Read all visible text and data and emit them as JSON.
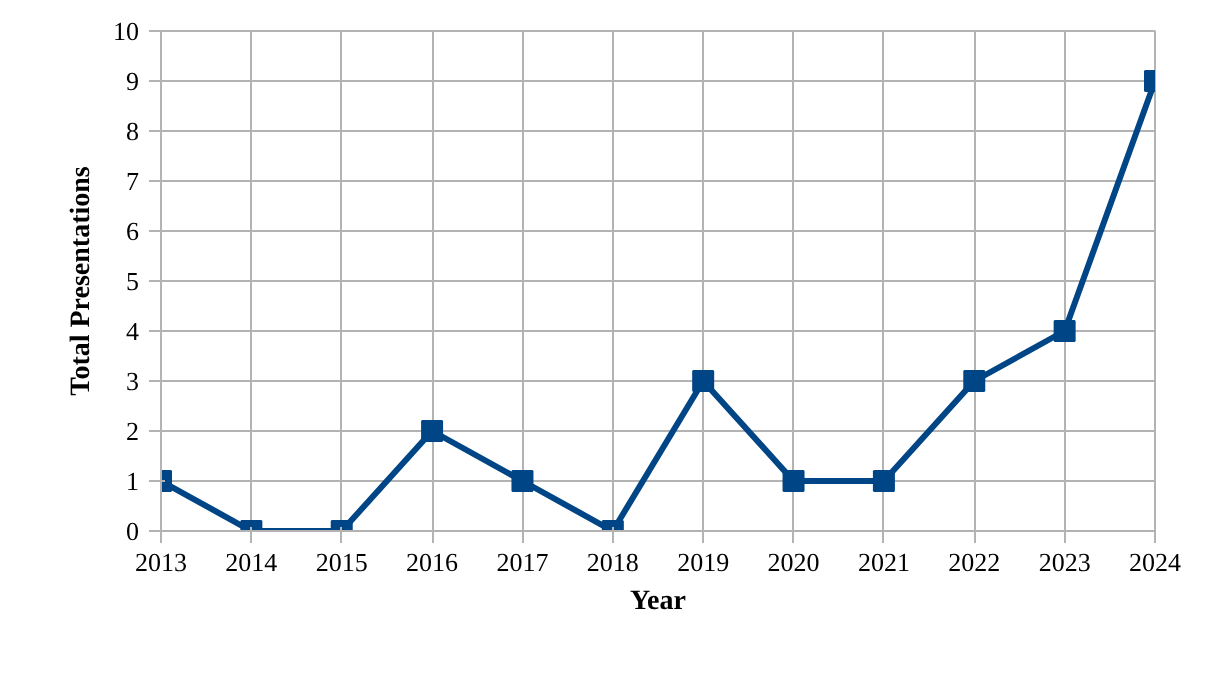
{
  "chart_data": {
    "type": "line",
    "xlabel": "Year",
    "ylabel": "Total Presentations",
    "x": [
      2013,
      2014,
      2015,
      2016,
      2017,
      2018,
      2019,
      2020,
      2021,
      2022,
      2023,
      2024
    ],
    "series": [
      {
        "color": "#004586",
        "values": [
          1,
          0,
          0,
          2,
          1,
          0,
          3,
          1,
          1,
          3,
          4,
          9
        ]
      }
    ],
    "xlim": [
      2013,
      2024
    ],
    "xticks": [
      2013,
      2014,
      2015,
      2016,
      2017,
      2018,
      2019,
      2020,
      2021,
      2022,
      2023,
      2024
    ],
    "ylim": [
      0,
      10
    ],
    "yticks": [
      0,
      1,
      2,
      3,
      4,
      5,
      6,
      7,
      8,
      9,
      10
    ],
    "grid": true,
    "marker": "square",
    "line_style": "solid"
  }
}
